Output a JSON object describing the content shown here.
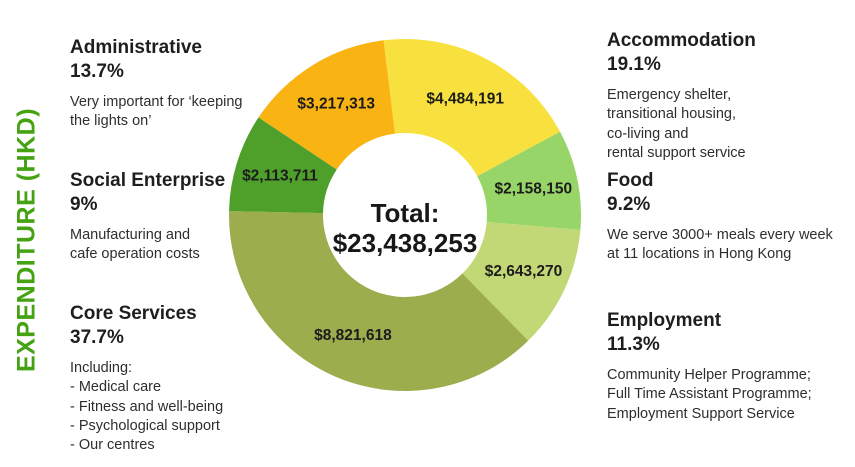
{
  "sidebar_title": {
    "text": "EXPENDITURE (HKD)",
    "color": "#45A313"
  },
  "chart_data": {
    "type": "pie",
    "variant": "donut",
    "title": "EXPENDITURE (HKD)",
    "direction": "clockwise",
    "start_angle_deg": -7,
    "inner_radius_ratio": 0.465,
    "center_label": {
      "line1": "Total:",
      "line2": "$23,438,253"
    },
    "total_value": 23438253,
    "segments": [
      {
        "name": "Accommodation",
        "percent": 19.1,
        "value": 4484191,
        "value_label": "$4,484,191",
        "color": "#F8E13E"
      },
      {
        "name": "Food",
        "percent": 9.2,
        "value": 2158150,
        "value_label": "$2,158,150",
        "color": "#97D568"
      },
      {
        "name": "Employment",
        "percent": 11.3,
        "value": 2643270,
        "value_label": "$2,643,270",
        "color": "#C2D877"
      },
      {
        "name": "Core Services",
        "percent": 37.7,
        "value": 8821618,
        "value_label": "$8,821,618",
        "color": "#9CAD4D"
      },
      {
        "name": "Social Enterprise",
        "percent": 9.0,
        "value": 2113711,
        "value_label": "$2,113,711",
        "color": "#4F9F2B"
      },
      {
        "name": "Administrative",
        "percent": 13.7,
        "value": 3217313,
        "value_label": "$3,217,313",
        "color": "#F9B414"
      }
    ]
  },
  "annotations": {
    "left": [
      {
        "title": "Administrative",
        "percent": "13.7%",
        "description": "Very important for ‘keeping\nthe lights on’"
      },
      {
        "title": "Social Enterprise",
        "percent": "9%",
        "description": "Manufacturing and\ncafe operation costs"
      },
      {
        "title": "Core Services",
        "percent": "37.7%",
        "description": "Including:\n- Medical care\n- Fitness and well-being\n- Psychological support\n- Our centres"
      }
    ],
    "right": [
      {
        "title": "Accommodation",
        "percent": "19.1%",
        "description": "Emergency shelter,\ntransitional housing,\nco-living and\nrental support service"
      },
      {
        "title": "Food",
        "percent": "9.2%",
        "description": "We serve 3000+ meals every week\nat 11 locations in Hong Kong"
      },
      {
        "title": "Employment",
        "percent": "11.3%",
        "description": "Community Helper Programme;\nFull Time Assistant Programme;\nEmployment Support Service"
      }
    ]
  }
}
